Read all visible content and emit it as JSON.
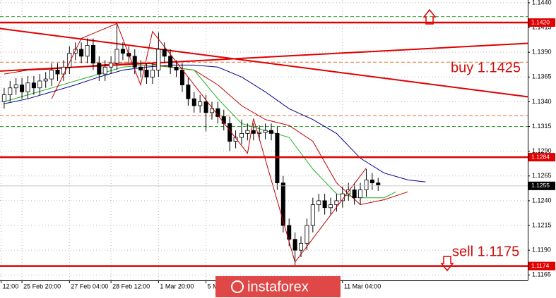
{
  "chart_data": {
    "type": "candlestick",
    "x": [
      0,
      1,
      2,
      3,
      4,
      5,
      6,
      7,
      8,
      9,
      10,
      11,
      12,
      13,
      14,
      15,
      16,
      17,
      18,
      19,
      20,
      21,
      22,
      23,
      24,
      25,
      26,
      27,
      28,
      29,
      30,
      31,
      32,
      33,
      34,
      35,
      36,
      37,
      38,
      39,
      40,
      41,
      42,
      43,
      44,
      45,
      46,
      47,
      48,
      49,
      50,
      51,
      52,
      53,
      54,
      55,
      56,
      57,
      58,
      59,
      60,
      61,
      62,
      63
    ],
    "open": [
      1.134,
      1.1347,
      1.1354,
      1.1357,
      1.135,
      1.1359,
      1.1354,
      1.1361,
      1.1363,
      1.1372,
      1.1368,
      1.1375,
      1.1389,
      1.1393,
      1.1386,
      1.1397,
      1.1379,
      1.1368,
      1.1375,
      1.1379,
      1.1393,
      1.1389,
      1.1386,
      1.1375,
      1.1372,
      1.1365,
      1.1372,
      1.1393,
      1.1386,
      1.1375,
      1.1372,
      1.1357,
      1.1343,
      1.1336,
      1.134,
      1.1329,
      1.1333,
      1.1325,
      1.1318,
      1.13,
      1.1304,
      1.1308,
      1.1311,
      1.1308,
      1.1309,
      1.1311,
      1.1308,
      1.1258,
      1.1215,
      1.1201,
      1.119,
      1.1197,
      1.1215,
      1.1236,
      1.124,
      1.1233,
      1.1236,
      1.124,
      1.1247,
      1.1251,
      1.1243,
      1.1251,
      1.1261,
      1.1258
    ],
    "high": [
      1.1354,
      1.1361,
      1.1364,
      1.1364,
      1.1366,
      1.1366,
      1.1368,
      1.137,
      1.1379,
      1.1379,
      1.1382,
      1.1396,
      1.14,
      1.14,
      1.1404,
      1.1404,
      1.1386,
      1.1382,
      1.1386,
      1.142,
      1.14,
      1.1396,
      1.1393,
      1.1382,
      1.1379,
      1.1379,
      1.141,
      1.14,
      1.1393,
      1.1382,
      1.1379,
      1.1364,
      1.135,
      1.1347,
      1.1347,
      1.134,
      1.134,
      1.1332,
      1.1325,
      1.1311,
      1.1322,
      1.1318,
      1.1318,
      1.1316,
      1.1318,
      1.1318,
      1.1315,
      1.1265,
      1.1222,
      1.1208,
      1.1204,
      1.1222,
      1.1243,
      1.1247,
      1.1247,
      1.1243,
      1.1247,
      1.1254,
      1.1258,
      1.1258,
      1.1258,
      1.1272,
      1.1268,
      1.1263
    ],
    "low": [
      1.1333,
      1.134,
      1.1347,
      1.1343,
      1.1343,
      1.1347,
      1.1347,
      1.1354,
      1.1356,
      1.1361,
      1.1361,
      1.1368,
      1.1382,
      1.1379,
      1.1379,
      1.1372,
      1.1361,
      1.1361,
      1.1368,
      1.1372,
      1.1382,
      1.1379,
      1.1368,
      1.1365,
      1.1358,
      1.1358,
      1.1365,
      1.1379,
      1.1368,
      1.1365,
      1.135,
      1.1336,
      1.1329,
      1.1329,
      1.131,
      1.1322,
      1.1318,
      1.1311,
      1.129,
      1.1293,
      1.1297,
      1.1301,
      1.1301,
      1.1301,
      1.1302,
      1.1301,
      1.1251,
      1.1208,
      1.1194,
      1.1175,
      1.1183,
      1.119,
      1.1208,
      1.1229,
      1.1226,
      1.1226,
      1.1229,
      1.1233,
      1.124,
      1.1236,
      1.1236,
      1.1244,
      1.1251,
      1.125
    ],
    "close": [
      1.1347,
      1.1354,
      1.1357,
      1.135,
      1.1359,
      1.1354,
      1.1361,
      1.1363,
      1.1372,
      1.1368,
      1.1375,
      1.1389,
      1.1393,
      1.1386,
      1.1397,
      1.1379,
      1.1368,
      1.1375,
      1.1379,
      1.1393,
      1.1389,
      1.1386,
      1.1375,
      1.1372,
      1.1365,
      1.1372,
      1.1393,
      1.1386,
      1.1375,
      1.1372,
      1.1357,
      1.1343,
      1.1336,
      1.134,
      1.1329,
      1.1333,
      1.1325,
      1.1318,
      1.13,
      1.1304,
      1.1308,
      1.1311,
      1.1308,
      1.1309,
      1.1311,
      1.1308,
      1.1258,
      1.1215,
      1.1201,
      1.119,
      1.1197,
      1.1215,
      1.1236,
      1.124,
      1.1233,
      1.1236,
      1.124,
      1.1247,
      1.1251,
      1.1243,
      1.1251,
      1.1261,
      1.1258,
      1.1256
    ],
    "color_up": "#ffffff",
    "color_down": "#000000",
    "xlim": [
      -0.7,
      88.2
    ],
    "ylim": [
      1.11595,
      1.14428
    ],
    "xticks": [
      {
        "value": -0.5,
        "label": "12:00"
      },
      {
        "value": 3,
        "label": "25 Feb 20:00"
      },
      {
        "value": 11,
        "label": "27 Feb 04:00"
      },
      {
        "value": 18,
        "label": "28 Feb 12:00"
      },
      {
        "value": 26,
        "label": "1 Mar 20:00"
      },
      {
        "value": 34,
        "label": "5 M"
      },
      {
        "value": 57,
        "label": "11 Mar 04:00"
      }
    ],
    "yticks": [
      {
        "value": 1.144,
        "label": "1.1440"
      },
      {
        "value": 1.1415,
        "label": "1.1415"
      },
      {
        "value": 1.139,
        "label": "1.1390"
      },
      {
        "value": 1.1365,
        "label": "1.1365"
      },
      {
        "value": 1.134,
        "label": "1.1340"
      },
      {
        "value": 1.1315,
        "label": "1.1315"
      },
      {
        "value": 1.129,
        "label": "1.1290"
      },
      {
        "value": 1.1265,
        "label": "1.1265"
      },
      {
        "value": 1.124,
        "label": "1.1240"
      },
      {
        "value": 1.1215,
        "label": "1.1215"
      },
      {
        "value": 1.119,
        "label": "1.1190"
      },
      {
        "value": 1.1165,
        "label": "1.1165"
      }
    ],
    "grid": true,
    "moving_averages": [
      {
        "color": "#00008b",
        "x": [
          0,
          4,
          8,
          12,
          16,
          20,
          24,
          28,
          32,
          36,
          40,
          44,
          48,
          52,
          56,
          60,
          64,
          68,
          71
        ],
        "values": [
          1.1338,
          1.1343,
          1.135,
          1.1357,
          1.1365,
          1.1372,
          1.1375,
          1.1377,
          1.1377,
          1.1375,
          1.1365,
          1.135,
          1.1333,
          1.1322,
          1.1308,
          1.1283,
          1.1268,
          1.1261,
          1.1259
        ]
      },
      {
        "color": "#c00000",
        "x": [
          0,
          4,
          8,
          12,
          16,
          20,
          24,
          28,
          32,
          36,
          40,
          44,
          48,
          52,
          56,
          60,
          64,
          68
        ],
        "values": [
          1.1368,
          1.1372,
          1.1373,
          1.1375,
          1.1377,
          1.1379,
          1.1379,
          1.1375,
          1.1372,
          1.1357,
          1.1336,
          1.1322,
          1.1316,
          1.13,
          1.1258,
          1.1236,
          1.1241,
          1.1249
        ]
      },
      {
        "color": "#22b022",
        "x": [
          0,
          4,
          8,
          12,
          16,
          20,
          24,
          28,
          32,
          36,
          40,
          44,
          48,
          52,
          56,
          60,
          64,
          66
        ],
        "values": [
          1.134,
          1.1347,
          1.1354,
          1.1361,
          1.1368,
          1.1375,
          1.1377,
          1.1375,
          1.1372,
          1.1343,
          1.1318,
          1.1311,
          1.1304,
          1.1272,
          1.1247,
          1.1243,
          1.1243,
          1.1249
        ]
      }
    ],
    "zigzag": {
      "color": "#c00000",
      "x": [
        8,
        13,
        19,
        23,
        25,
        41,
        42,
        49,
        61
      ],
      "values": [
        1.1343,
        1.1404,
        1.1419,
        1.1357,
        1.1411,
        1.1288,
        1.1323,
        1.1178,
        1.1273
      ]
    },
    "trend_lines": [
      {
        "color": "#e00000",
        "x": [
          -0.7,
          88.2
        ],
        "y": [
          1.1414,
          1.1345
        ]
      },
      {
        "color": "#e00000",
        "x": [
          -0.7,
          88.2
        ],
        "y": [
          1.1371,
          1.1399
        ]
      }
    ],
    "levels": [
      {
        "value": 1.142,
        "label": "1.1420"
      },
      {
        "value": 1.1284,
        "label": "1.1284"
      },
      {
        "value": 1.1174,
        "label": "1.1174"
      }
    ],
    "level_color": "#e00000",
    "current_price": {
      "value": 1.1255,
      "label": "1.1255"
    },
    "dashed_levels": [
      {
        "value": 1.1426,
        "color": "#2e9e2e"
      },
      {
        "value": 1.138,
        "color": "#e07030"
      },
      {
        "value": 1.1326,
        "color": "#e07030"
      },
      {
        "value": 1.1315,
        "color": "#2e9e2e"
      }
    ],
    "annotations": [
      "buy 1.1425",
      "sell 1.1175"
    ],
    "watermark": "instaforex"
  }
}
